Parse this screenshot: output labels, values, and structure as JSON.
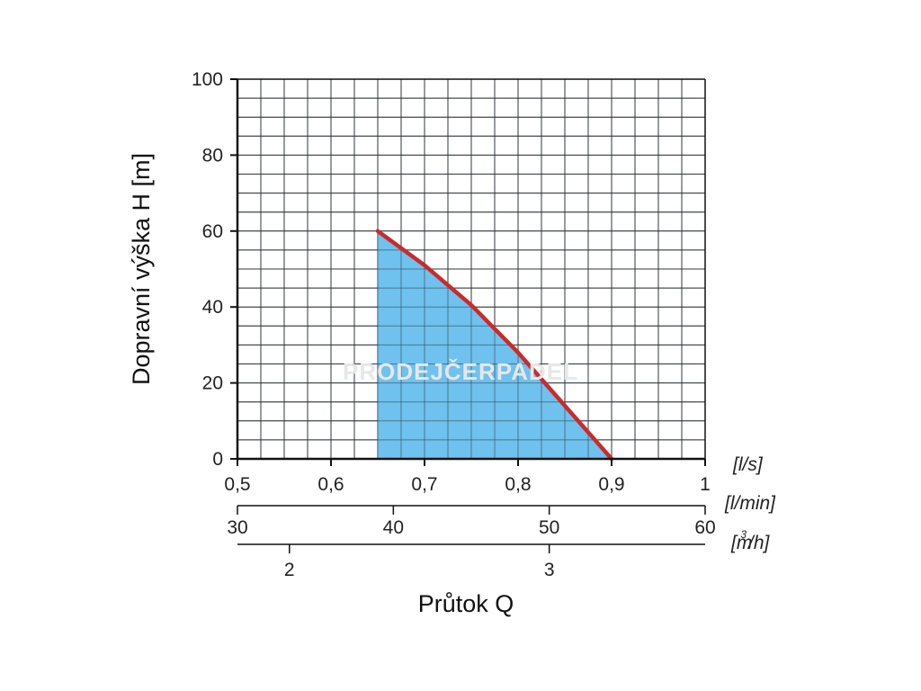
{
  "chart_data": {
    "type": "area",
    "ylabel": "Dopravní výška H [m]",
    "xlabel": "Průtok Q",
    "ylim": [
      0,
      100
    ],
    "xlim": [
      0.5,
      1.0
    ],
    "grid": true,
    "y_ticks": [
      "0",
      "20",
      "40",
      "60",
      "80",
      "100"
    ],
    "y_tick_values": [
      0,
      20,
      40,
      60,
      80,
      100
    ],
    "x_axes": [
      {
        "unit": "[l/s]",
        "ticks": [
          "0,5",
          "0,6",
          "0,7",
          "0,8",
          "0,9",
          "1"
        ],
        "values": [
          0.5,
          0.6,
          0.7,
          0.8,
          0.9,
          1.0
        ]
      },
      {
        "unit": "[l/min]",
        "ticks": [
          "30",
          "40",
          "50",
          "60"
        ],
        "values": [
          30,
          40,
          50,
          60
        ]
      },
      {
        "unit_base": "[m",
        "unit_sup": "3",
        "unit_tail": "/h]",
        "ticks": [
          "2",
          "3"
        ],
        "values": [
          2,
          3
        ]
      }
    ],
    "series": [
      {
        "x": [
          0.65,
          0.7,
          0.75,
          0.8,
          0.85,
          0.9
        ],
        "y": [
          60,
          51,
          40.5,
          28,
          14,
          0
        ],
        "line_color": "#cc2a2a",
        "fill_color": "#6fc1ee"
      }
    ],
    "watermark": "PRODEJČERPADEL"
  }
}
